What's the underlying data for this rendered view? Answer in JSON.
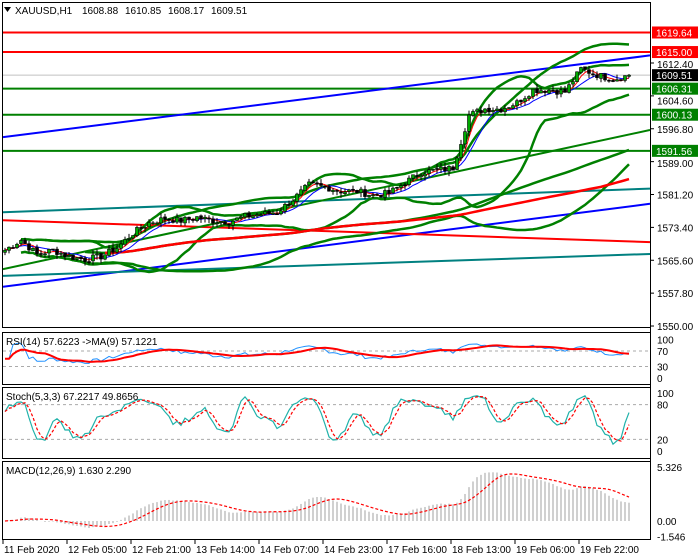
{
  "header": {
    "symbol": "XAUUSD,H1",
    "open": "1608.88",
    "high": "1610.85",
    "low": "1608.17",
    "close": "1609.51",
    "arrow_icon": "triangle-down-icon"
  },
  "chart_data": [
    {
      "type": "candlestick",
      "symbol": "XAUUSD",
      "timeframe": "H1",
      "ylim": [
        1550.0,
        1622.0
      ],
      "y_ticks": [
        "1612.40",
        "1604.60",
        "1596.80",
        "1589.00",
        "1581.20",
        "1573.40",
        "1565.60",
        "1557.80",
        "1550.00"
      ],
      "x_ticks": [
        "11 Feb 2020",
        "12 Feb 05:00",
        "12 Feb 21:00",
        "13 Feb 14:00",
        "14 Feb 07:00",
        "14 Feb 23:00",
        "17 Feb 16:00",
        "18 Feb 13:00",
        "19 Feb 06:00",
        "19 Feb 22:00"
      ],
      "closes_sampled_every_4_bars": [
        1568,
        1570.4,
        1567,
        1568,
        1566.5,
        1565.8,
        1566.5,
        1568.5,
        1572,
        1574.5,
        1575.5,
        1575,
        1575.8,
        1575,
        1574.7,
        1576,
        1576.5,
        1577,
        1580,
        1583.5,
        1583,
        1582,
        1582,
        1581,
        1581.5,
        1584,
        1586.5,
        1587,
        1587.5,
        1600,
        1601.5,
        1601.5,
        1603,
        1606,
        1606,
        1605.5,
        1611,
        1609.6,
        1608.5,
        1609.51
      ],
      "horizontal_levels": [
        {
          "price": "1619.64",
          "color": "#ff0000"
        },
        {
          "price": "1615.00",
          "color": "#ff0000"
        },
        {
          "price": "1609.51",
          "color": "#000000",
          "current": true
        },
        {
          "price": "1606.31",
          "color": "#008000"
        },
        {
          "price": "1600.13",
          "color": "#008000"
        },
        {
          "price": "1591.56",
          "color": "#008000"
        }
      ],
      "trend_lines": [
        {
          "color": "#0000ff",
          "start": 1594.8,
          "end": 1614.2
        },
        {
          "color": "#0000ff",
          "start": 1559.3,
          "end": 1579.0
        },
        {
          "color": "#008080",
          "start": 1577.0,
          "end": 1582.6
        },
        {
          "color": "#008080",
          "start": 1561.9,
          "end": 1567.1
        },
        {
          "color": "#ff0000",
          "start": 1575.1,
          "end": 1569.9
        },
        {
          "color": "#008000",
          "start": 1563.5,
          "end": 1596.5
        }
      ]
    },
    {
      "type": "line",
      "title": "RSI(14) 57.6223  ->MA(9) 57.1221",
      "levels": [
        "100",
        "70",
        "30",
        "0"
      ],
      "ylim": [
        0,
        100
      ]
    },
    {
      "type": "line",
      "title": "Stoch(5,3,3) 67.2217 49.8656",
      "levels": [
        "100",
        "80",
        "20",
        "0"
      ],
      "ylim": [
        0,
        100
      ]
    },
    {
      "type": "bar",
      "title": "MACD(12,26,9) 1.630 2.290",
      "levels": [
        "5.326",
        "0.00",
        "-1.546"
      ],
      "ylim": [
        -1.546,
        5.326
      ]
    }
  ]
}
